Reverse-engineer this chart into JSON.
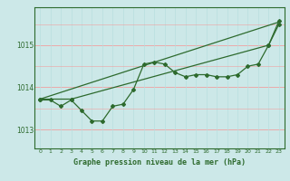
{
  "background_color": "#cce8e8",
  "grid_color_h": "#f0a0a0",
  "grid_color_v": "#b8dede",
  "line_color": "#2d6a2d",
  "title": "Graphe pression niveau de la mer (hPa)",
  "ylabel_ticks": [
    1013,
    1014,
    1015
  ],
  "xlim": [
    -0.5,
    23.5
  ],
  "ylim": [
    1012.55,
    1015.9
  ],
  "x_hours": [
    0,
    1,
    2,
    3,
    4,
    5,
    6,
    7,
    8,
    9,
    10,
    11,
    12,
    13,
    14,
    15,
    16,
    17,
    18,
    19,
    20,
    21,
    22,
    23
  ],
  "series1": [
    1013.7,
    1013.7,
    1013.55,
    1013.7,
    1013.45,
    1013.2,
    1013.2,
    1013.55,
    1013.6,
    1013.95,
    1014.55,
    1014.6,
    1014.55,
    1014.35,
    1014.25,
    1014.3,
    1014.3,
    1014.25,
    1014.25,
    1014.3,
    1014.5,
    1014.55,
    1015.0,
    1015.5
  ],
  "line2_x": [
    0,
    23
  ],
  "line2_y": [
    1013.72,
    1015.55
  ],
  "line3_x": [
    0,
    3,
    22,
    23
  ],
  "line3_y": [
    1013.72,
    1013.72,
    1015.0,
    1015.58
  ]
}
